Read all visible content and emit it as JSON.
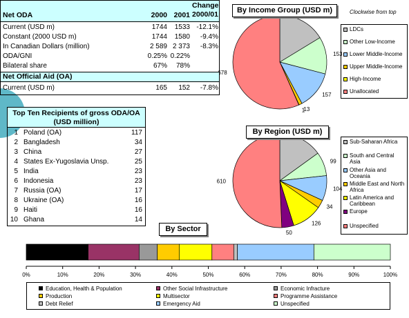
{
  "table": {
    "header": [
      "Net ODA",
      "2000",
      "2001",
      "Change 2000/01"
    ],
    "rows": [
      [
        "Current (USD m)",
        "1744",
        "1533",
        "-12.1%"
      ],
      [
        "Constant (2000 USD m)",
        "1744",
        "1580",
        "-9.4%"
      ],
      [
        "In Canadian Dollars (million)",
        "2 589",
        "2 373",
        "-8.3%"
      ],
      [
        "ODA/GNI",
        "0.25%",
        "0.22%"
      ],
      [
        "Bilateral share",
        "67%",
        "78%"
      ]
    ],
    "section": "Net Official Aid (OA)",
    "oa_rows": [
      [
        "Current (USD m)",
        "165",
        "152",
        "-7.8%"
      ]
    ]
  },
  "top_ten": {
    "title": "Top Ten Recipients of gross ODA/OA (USD million)",
    "rows": [
      [
        "1",
        "Poland (OA)",
        "117"
      ],
      [
        "2",
        "Bangladesh",
        "34"
      ],
      [
        "3",
        "China",
        "27"
      ],
      [
        "4",
        "States Ex-Yugoslavia Unsp.",
        "25"
      ],
      [
        "5",
        "India",
        "23"
      ],
      [
        "6",
        "Indonesia",
        "23"
      ],
      [
        "7",
        "Russia (OA)",
        "17"
      ],
      [
        "8",
        "Ukraine (OA)",
        "16"
      ],
      [
        "9",
        "Haiti",
        "16"
      ],
      [
        "10",
        "Ghana",
        "14"
      ]
    ]
  },
  "chart_data": [
    {
      "type": "pie",
      "title": "By Income Group (USD m)",
      "annotation": "Clockwise from top",
      "categories": [
        "LDCs",
        "Other Low-Income",
        "Lower Middle-Income",
        "Upper Middle-Income",
        "High-Income",
        "Unallocated"
      ],
      "values": [
        195,
        153,
        157,
        13,
        1,
        678
      ],
      "colors": [
        "#c0c0c0",
        "#ccffcc",
        "#99ccff",
        "#ffcc00",
        "#ffff00",
        "#ff8080"
      ]
    },
    {
      "type": "pie",
      "title": "By Region (USD m)",
      "categories": [
        "Sub-Saharan Africa",
        "South and Central Asia",
        "Other Asia and Oceania",
        "Middle East and North Africa",
        "Latin America and Caribbean",
        "Europe",
        "Unspecified"
      ],
      "values": [
        181,
        99,
        104,
        34,
        126,
        50,
        610
      ],
      "colors": [
        "#c0c0c0",
        "#ccffcc",
        "#99ccff",
        "#ffcc00",
        "#ffff00",
        "#800080",
        "#ff8080"
      ]
    },
    {
      "type": "stacked_bar",
      "title": "By Sector",
      "xlim": [
        0,
        100
      ],
      "xticks": [
        {
          "value": 0,
          "label": "0%"
        },
        {
          "value": 10,
          "label": "10%"
        },
        {
          "value": 20,
          "label": "20%"
        },
        {
          "value": 30,
          "label": "30%"
        },
        {
          "value": 40,
          "label": "40%"
        },
        {
          "value": 50,
          "label": "50%"
        },
        {
          "value": 60,
          "label": "60%"
        },
        {
          "value": 70,
          "label": "70%"
        },
        {
          "value": 80,
          "label": "80%"
        },
        {
          "value": 90,
          "label": "90%"
        },
        {
          "value": 100,
          "label": "100%"
        }
      ],
      "series": [
        {
          "name": "Education, Health & Population",
          "color": "#000000",
          "values": [
            17
          ]
        },
        {
          "name": "Other Social Infrastructure",
          "color": "#993366",
          "values": [
            14
          ]
        },
        {
          "name": "Economic Infracture",
          "color": "#999999",
          "values": [
            5
          ]
        },
        {
          "name": "Production",
          "color": "#ffcc00",
          "values": [
            6
          ]
        },
        {
          "name": "Multisector",
          "color": "#ffff00",
          "values": [
            9
          ]
        },
        {
          "name": "Programme Assistance",
          "color": "#ff8080",
          "values": [
            6
          ]
        },
        {
          "name": "Debt Relief",
          "color": "#c0c0c0",
          "values": [
            1
          ]
        },
        {
          "name": "Emergency Aid",
          "color": "#99ccff",
          "values": [
            21
          ]
        },
        {
          "name": "Unspecified",
          "color": "#ccffcc",
          "values": [
            21
          ]
        }
      ]
    }
  ]
}
